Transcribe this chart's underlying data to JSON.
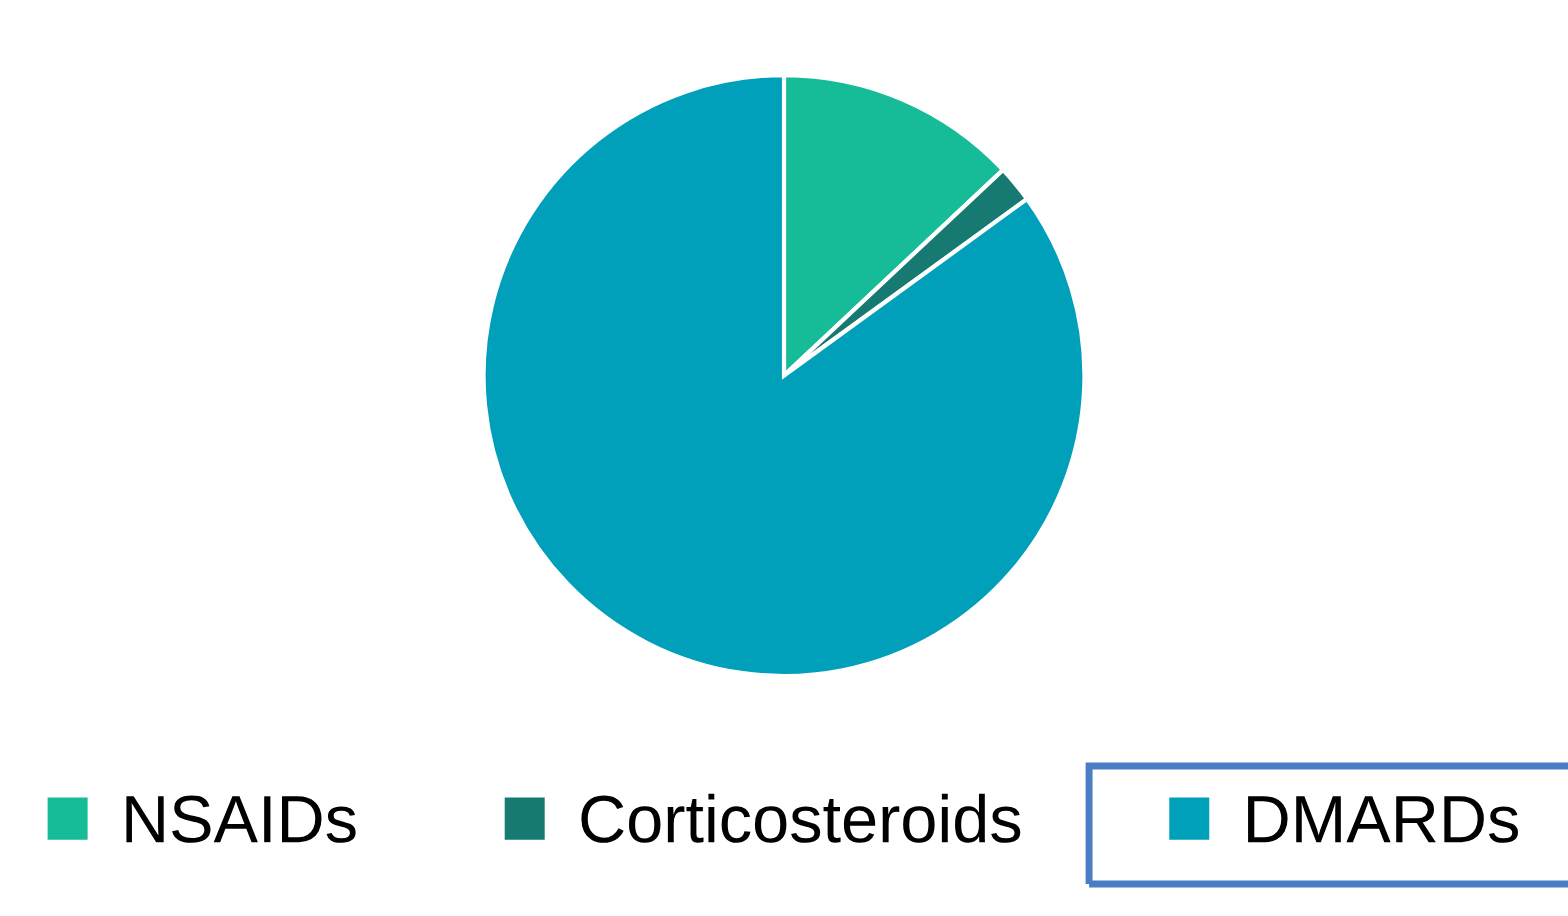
{
  "chart_data": {
    "type": "pie",
    "categories": [
      "NSAIDs",
      "Corticosteroids",
      "DMARDs"
    ],
    "values": [
      13,
      2,
      85
    ],
    "colors": [
      "#16bb98",
      "#167a72",
      "#009fba"
    ],
    "legend": "bottom"
  }
}
